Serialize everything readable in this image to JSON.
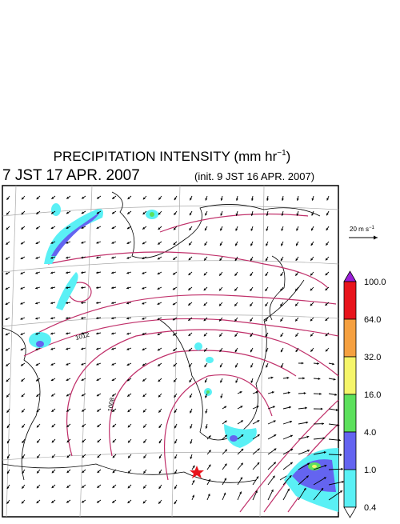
{
  "header": {
    "title": "PRECIPITATION INTENSITY (mm hr",
    "title_exponent": "−1",
    "title_end": ")",
    "valid_time": "7 JST 17 APR. 2007",
    "init_time": "(init. 9 JST 16 APR. 2007)"
  },
  "reference_vector": {
    "label": "20 m s",
    "exponent": "−1"
  },
  "contour_labels": [
    "1012",
    "1008"
  ],
  "colorbar": {
    "labels": [
      "100.0",
      "64.0",
      "32.0",
      "16.0",
      "4.0",
      "1.0",
      "0.4"
    ],
    "colors": [
      "#9b1fd8",
      "#e8141c",
      "#f5a040",
      "#f5f56a",
      "#5ce05c",
      "#6464f0",
      "#5af0f5",
      "#ffffff"
    ]
  }
}
